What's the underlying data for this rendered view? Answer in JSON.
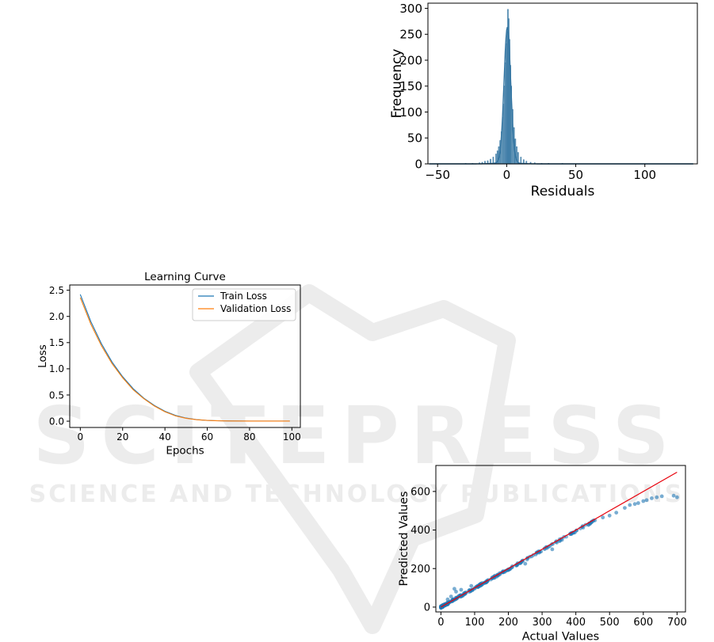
{
  "watermark": {
    "big": "SCITEPRESS",
    "small": "SCIENCE AND TECHNOLOGY PUBLICATIONS",
    "color": "#e4e4e4"
  },
  "chart_data": [
    {
      "id": "residuals",
      "type": "histogram",
      "title": "",
      "xlabel": "Residuals",
      "ylabel": "Frequency",
      "xlim": [
        -57,
        138
      ],
      "ylim": [
        0,
        310
      ],
      "xticks": [
        -50,
        0,
        50,
        100
      ],
      "yticks": [
        0,
        50,
        100,
        150,
        200,
        250,
        300
      ],
      "kde_peak": 262,
      "bin_width": 0.6,
      "bins": [
        [
          -56,
          0
        ],
        [
          -30,
          1
        ],
        [
          -25,
          1
        ],
        [
          -20,
          2
        ],
        [
          -18,
          3
        ],
        [
          -16,
          5
        ],
        [
          -14,
          6
        ],
        [
          -12,
          9
        ],
        [
          -10,
          13
        ],
        [
          -8,
          19
        ],
        [
          -7,
          25
        ],
        [
          -6,
          33
        ],
        [
          -5,
          45
        ],
        [
          -4,
          62
        ],
        [
          -3,
          90
        ],
        [
          -2.4,
          115
        ],
        [
          -1.8,
          150
        ],
        [
          -1.2,
          195
        ],
        [
          -0.6,
          232
        ],
        [
          0,
          255
        ],
        [
          0.6,
          298
        ],
        [
          1.2,
          280
        ],
        [
          1.8,
          240
        ],
        [
          2.4,
          190
        ],
        [
          3,
          150
        ],
        [
          4,
          105
        ],
        [
          5,
          70
        ],
        [
          6,
          48
        ],
        [
          7,
          33
        ],
        [
          8,
          22
        ],
        [
          10,
          13
        ],
        [
          12,
          8
        ],
        [
          14,
          5
        ],
        [
          17,
          3
        ],
        [
          20,
          2
        ],
        [
          25,
          1
        ],
        [
          30,
          1
        ],
        [
          40,
          1
        ],
        [
          60,
          0
        ],
        [
          100,
          0
        ],
        [
          135,
          0
        ]
      ],
      "color": "#3274a1"
    },
    {
      "id": "learning-curve",
      "type": "line",
      "title": "Learning Curve",
      "xlabel": "Epochs",
      "ylabel": "Loss",
      "xlim": [
        -5,
        104
      ],
      "ylim": [
        -0.12,
        2.6
      ],
      "xticks": [
        0,
        20,
        40,
        60,
        80,
        100
      ],
      "yticks": [
        0.0,
        0.5,
        1.0,
        1.5,
        2.0,
        2.5
      ],
      "legend_position": "top-right",
      "series": [
        {
          "name": "Train Loss",
          "color": "#1f77b4",
          "x": [
            0,
            5,
            10,
            15,
            20,
            25,
            30,
            35,
            40,
            45,
            50,
            55,
            60,
            65,
            70,
            80,
            90,
            99
          ],
          "y": [
            2.42,
            1.9,
            1.48,
            1.13,
            0.85,
            0.62,
            0.44,
            0.3,
            0.19,
            0.11,
            0.06,
            0.03,
            0.015,
            0.008,
            0.005,
            0.003,
            0.002,
            0.002
          ]
        },
        {
          "name": "Validation Loss",
          "color": "#ff7f0e",
          "x": [
            0,
            5,
            10,
            15,
            20,
            25,
            30,
            35,
            40,
            45,
            50,
            55,
            60,
            65,
            70,
            80,
            90,
            99
          ],
          "y": [
            2.36,
            1.85,
            1.44,
            1.1,
            0.83,
            0.6,
            0.43,
            0.29,
            0.18,
            0.1,
            0.055,
            0.028,
            0.014,
            0.007,
            0.004,
            0.003,
            0.002,
            0.002
          ]
        }
      ]
    },
    {
      "id": "actual-vs-predicted",
      "type": "scatter",
      "title": "",
      "xlabel": "Actual Values",
      "ylabel": "Predicted Values",
      "xlim": [
        -15,
        725
      ],
      "ylim": [
        -25,
        735
      ],
      "xticks": [
        0,
        100,
        200,
        300,
        400,
        500,
        600,
        700
      ],
      "yticks": [
        0,
        200,
        400,
        600
      ],
      "point_color": "#1f77b4",
      "line_color": "#e8000b",
      "identity_line": [
        [
          0,
          0
        ],
        [
          700,
          700
        ]
      ],
      "outliers": [
        [
          40,
          95
        ],
        [
          45,
          80
        ],
        [
          20,
          40
        ],
        [
          30,
          55
        ],
        [
          25,
          25
        ],
        [
          60,
          90
        ],
        [
          90,
          110
        ],
        [
          250,
          225
        ],
        [
          330,
          300
        ],
        [
          420,
          420
        ],
        [
          440,
          435
        ],
        [
          480,
          465
        ],
        [
          500,
          475
        ],
        [
          520,
          490
        ],
        [
          545,
          515
        ],
        [
          560,
          530
        ],
        [
          575,
          535
        ],
        [
          585,
          540
        ],
        [
          600,
          550
        ],
        [
          610,
          555
        ],
        [
          625,
          565
        ],
        [
          640,
          570
        ],
        [
          690,
          578
        ],
        [
          700,
          570
        ],
        [
          655,
          575
        ]
      ]
    }
  ]
}
